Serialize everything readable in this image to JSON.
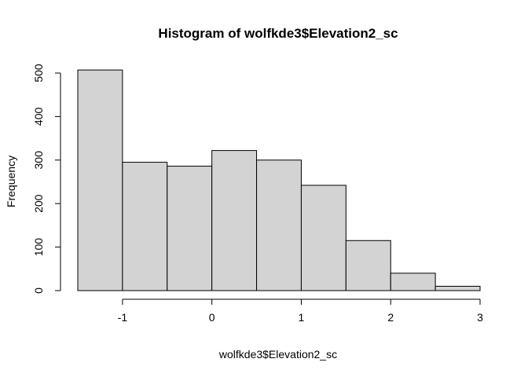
{
  "chart_data": {
    "type": "bar",
    "title": "Histogram of wolfkde3$Elevation2_sc",
    "xlabel": "wolfkde3$Elevation2_sc",
    "ylabel": "Frequency",
    "bins": [
      {
        "start": -1.5,
        "end": -1.0,
        "value": 507
      },
      {
        "start": -1.0,
        "end": -0.5,
        "value": 295
      },
      {
        "start": -0.5,
        "end": 0.0,
        "value": 286
      },
      {
        "start": 0.0,
        "end": 0.5,
        "value": 322
      },
      {
        "start": 0.5,
        "end": 1.0,
        "value": 300
      },
      {
        "start": 1.0,
        "end": 1.5,
        "value": 242
      },
      {
        "start": 1.5,
        "end": 2.0,
        "value": 115
      },
      {
        "start": 2.0,
        "end": 2.5,
        "value": 40
      },
      {
        "start": 2.5,
        "end": 3.0,
        "value": 10
      }
    ],
    "xlim": [
      -1.5,
      3
    ],
    "ylim": [
      0,
      500
    ],
    "x_ticks": [
      "-1",
      "0",
      "1",
      "2",
      "3"
    ],
    "x_tick_values": [
      -1,
      0,
      1,
      2,
      3
    ],
    "y_ticks": [
      "0",
      "100",
      "200",
      "300",
      "400",
      "500"
    ],
    "y_tick_values": [
      0,
      100,
      200,
      300,
      400,
      500
    ],
    "bar_fill": "#d3d3d3",
    "bar_stroke": "#000000",
    "grid": false
  }
}
